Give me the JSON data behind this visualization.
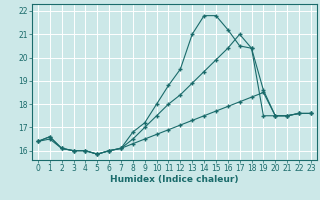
{
  "xlabel": "Humidex (Indice chaleur)",
  "bg_color": "#cce8e8",
  "grid_color": "#ffffff",
  "line_color": "#1a6b6b",
  "xlim": [
    -0.5,
    23.5
  ],
  "ylim": [
    15.6,
    22.3
  ],
  "xticks": [
    0,
    1,
    2,
    3,
    4,
    5,
    6,
    7,
    8,
    9,
    10,
    11,
    12,
    13,
    14,
    15,
    16,
    17,
    18,
    19,
    20,
    21,
    22,
    23
  ],
  "yticks": [
    16,
    17,
    18,
    19,
    20,
    21,
    22
  ],
  "line1_x": [
    0,
    1,
    2,
    3,
    4,
    5,
    6,
    7,
    8,
    9,
    10,
    11,
    12,
    13,
    14,
    15,
    16,
    17,
    18,
    19,
    20,
    21,
    22,
    23
  ],
  "line1_y": [
    16.4,
    16.6,
    16.1,
    16.0,
    16.0,
    15.85,
    16.0,
    16.1,
    16.8,
    17.2,
    18.0,
    18.8,
    19.5,
    21.0,
    21.8,
    21.8,
    21.2,
    20.5,
    20.4,
    17.5,
    17.5,
    17.5,
    17.6,
    17.6
  ],
  "line2_x": [
    0,
    1,
    2,
    3,
    4,
    5,
    6,
    7,
    8,
    9,
    10,
    11,
    12,
    13,
    14,
    15,
    16,
    17,
    18,
    19,
    20,
    21,
    22,
    23
  ],
  "line2_y": [
    16.4,
    16.6,
    16.1,
    16.0,
    16.0,
    15.85,
    16.0,
    16.1,
    16.5,
    17.0,
    17.5,
    18.0,
    18.4,
    18.9,
    19.4,
    19.9,
    20.4,
    21.0,
    20.4,
    18.6,
    17.5,
    17.5,
    17.6,
    17.6
  ],
  "line3_x": [
    0,
    1,
    2,
    3,
    4,
    5,
    6,
    7,
    8,
    9,
    10,
    11,
    12,
    13,
    14,
    15,
    16,
    17,
    18,
    19,
    20,
    21,
    22,
    23
  ],
  "line3_y": [
    16.4,
    16.5,
    16.1,
    16.0,
    16.0,
    15.85,
    16.0,
    16.1,
    16.3,
    16.5,
    16.7,
    16.9,
    17.1,
    17.3,
    17.5,
    17.7,
    17.9,
    18.1,
    18.3,
    18.5,
    17.5,
    17.5,
    17.6,
    17.6
  ]
}
